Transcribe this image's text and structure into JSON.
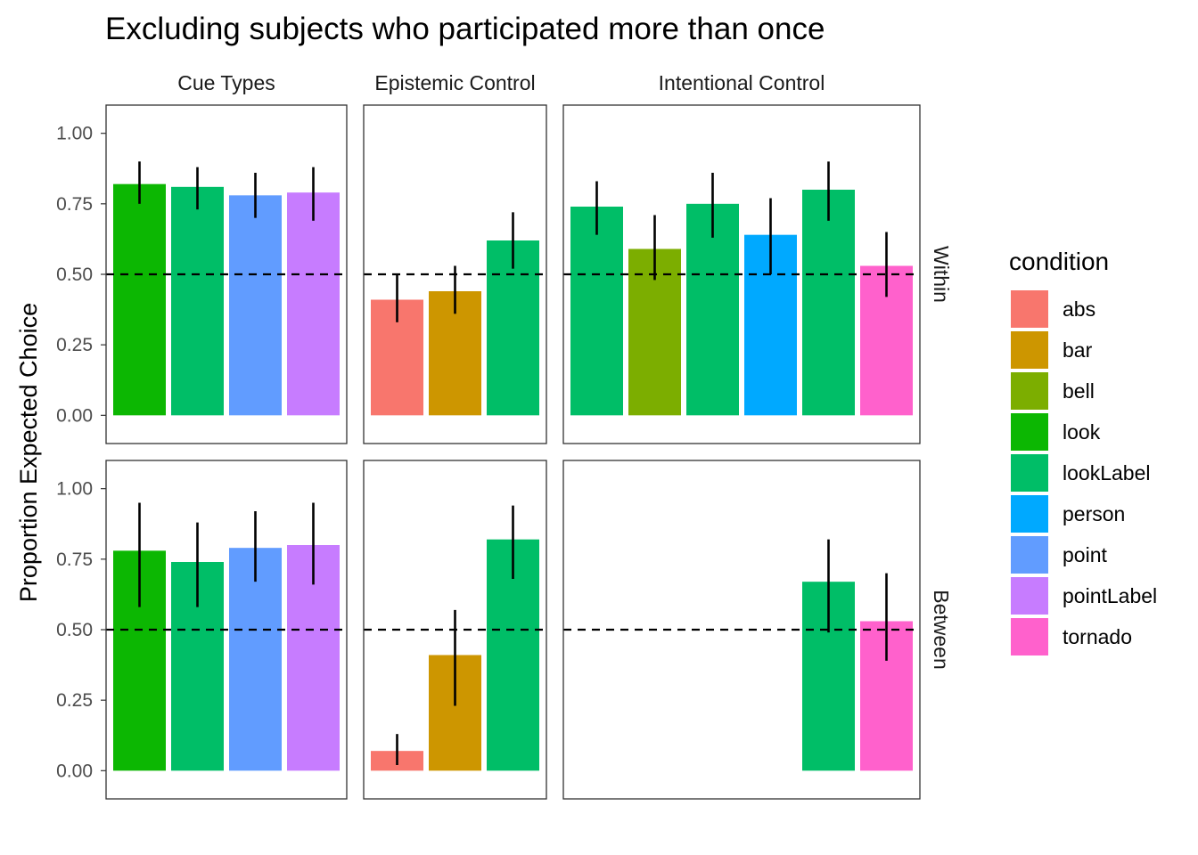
{
  "chart_data": {
    "type": "bar",
    "title": "Excluding subjects who participated more than once",
    "ylabel": "Proportion Expected Choice",
    "ylim": [
      -0.1,
      1.1
    ],
    "yticks": [
      "0.00",
      "0.25",
      "0.50",
      "0.75",
      "1.00"
    ],
    "reference_line": 0.5,
    "grid": false,
    "legend": {
      "title": "condition",
      "placement": "right",
      "items": [
        {
          "label": "abs",
          "color": "#F8766D"
        },
        {
          "label": "bar",
          "color": "#CD9600"
        },
        {
          "label": "bell",
          "color": "#7CAE00"
        },
        {
          "label": "look",
          "color": "#0CB702"
        },
        {
          "label": "lookLabel",
          "color": "#00BE67"
        },
        {
          "label": "person",
          "color": "#00A9FF"
        },
        {
          "label": "point",
          "color": "#619CFF"
        },
        {
          "label": "pointLabel",
          "color": "#C77CFF"
        },
        {
          "label": "tornado",
          "color": "#FF61CC"
        }
      ]
    },
    "columns": [
      "Cue Types",
      "Epistemic Control",
      "Intentional Control"
    ],
    "rows": [
      "Within",
      "Between"
    ],
    "panels": [
      {
        "row": "Within",
        "column": "Cue Types",
        "slots": 4,
        "bars": [
          {
            "condition": "look",
            "value": 0.82,
            "ci": [
              0.75,
              0.9
            ]
          },
          {
            "condition": "lookLabel",
            "value": 0.81,
            "ci": [
              0.73,
              0.88
            ]
          },
          {
            "condition": "point",
            "value": 0.78,
            "ci": [
              0.7,
              0.86
            ]
          },
          {
            "condition": "pointLabel",
            "value": 0.79,
            "ci": [
              0.69,
              0.88
            ]
          }
        ]
      },
      {
        "row": "Within",
        "column": "Epistemic Control",
        "slots": 3,
        "bars": [
          {
            "condition": "abs",
            "value": 0.41,
            "ci": [
              0.33,
              0.5
            ]
          },
          {
            "condition": "bar",
            "value": 0.44,
            "ci": [
              0.36,
              0.53
            ]
          },
          {
            "condition": "lookLabel",
            "value": 0.62,
            "ci": [
              0.52,
              0.72
            ]
          }
        ]
      },
      {
        "row": "Within",
        "column": "Intentional Control",
        "slots": 6,
        "bars": [
          {
            "condition": "lookLabel",
            "value": 0.74,
            "ci": [
              0.64,
              0.83
            ]
          },
          {
            "condition": "bell",
            "value": 0.59,
            "ci": [
              0.48,
              0.71
            ]
          },
          {
            "condition": "lookLabel",
            "value": 0.75,
            "ci": [
              0.63,
              0.86
            ]
          },
          {
            "condition": "person",
            "value": 0.64,
            "ci": [
              0.5,
              0.77
            ]
          },
          {
            "condition": "lookLabel",
            "value": 0.8,
            "ci": [
              0.69,
              0.9
            ]
          },
          {
            "condition": "tornado",
            "value": 0.53,
            "ci": [
              0.42,
              0.65
            ]
          }
        ]
      },
      {
        "row": "Between",
        "column": "Cue Types",
        "slots": 4,
        "bars": [
          {
            "condition": "look",
            "value": 0.78,
            "ci": [
              0.58,
              0.95
            ]
          },
          {
            "condition": "lookLabel",
            "value": 0.74,
            "ci": [
              0.58,
              0.88
            ]
          },
          {
            "condition": "point",
            "value": 0.79,
            "ci": [
              0.67,
              0.92
            ]
          },
          {
            "condition": "pointLabel",
            "value": 0.8,
            "ci": [
              0.66,
              0.95
            ]
          }
        ]
      },
      {
        "row": "Between",
        "column": "Epistemic Control",
        "slots": 3,
        "bars": [
          {
            "condition": "abs",
            "value": 0.07,
            "ci": [
              0.02,
              0.13
            ]
          },
          {
            "condition": "bar",
            "value": 0.41,
            "ci": [
              0.23,
              0.57
            ]
          },
          {
            "condition": "lookLabel",
            "value": 0.82,
            "ci": [
              0.68,
              0.94
            ]
          }
        ]
      },
      {
        "row": "Between",
        "column": "Intentional Control",
        "slots": 6,
        "bars": [
          {
            "condition": "lookLabel",
            "value": 0.67,
            "ci": [
              0.49,
              0.82
            ],
            "slot": 4
          },
          {
            "condition": "tornado",
            "value": 0.53,
            "ci": [
              0.39,
              0.7
            ],
            "slot": 5
          }
        ]
      }
    ]
  }
}
